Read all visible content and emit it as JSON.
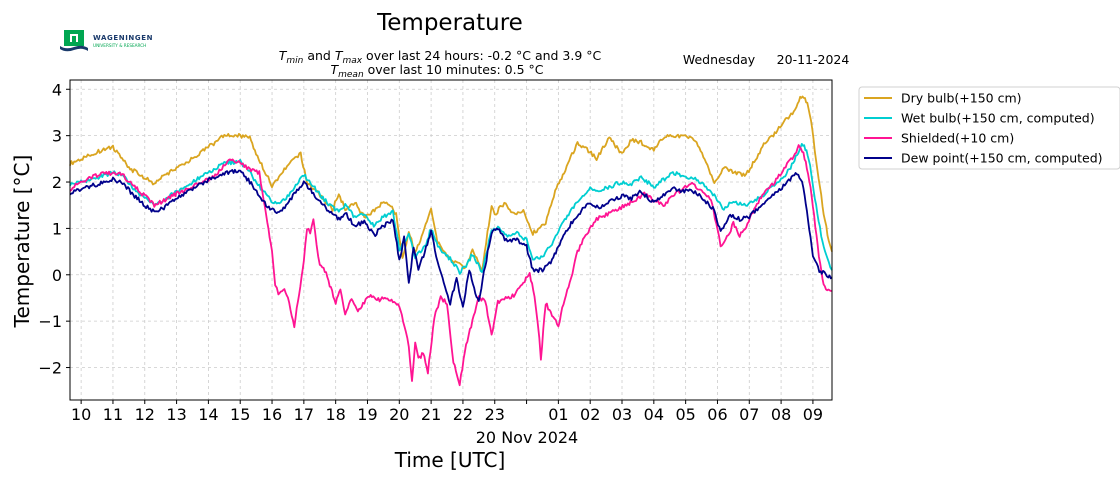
{
  "logo": {
    "line1": "WAGENINGEN",
    "line2": "UNIVERSITY & RESEARCH"
  },
  "header": {
    "title": "Temperature",
    "stats_line1": {
      "t": "T",
      "min_sub": "min",
      "and": " and ",
      "max_sub": "max",
      "rest": " over last 24 hours: -0.2 °C and 3.9 °C"
    },
    "stats_line2": {
      "t": "T",
      "mean_sub": "mean",
      "rest": " over last 10 minutes: 0.5 °C"
    },
    "weekday": "Wednesday",
    "date": "20-11-2024"
  },
  "chart_data": {
    "type": "line",
    "title": "Temperature",
    "xlabel": "Time [UTC]",
    "ylabel": "Temperature [°C]",
    "x_date_label": "20 Nov 2024",
    "x_range_hours": [
      9.65,
      33.6
    ],
    "ylim": [
      -2.7,
      4.2
    ],
    "x_ticks": [
      {
        "h": 10,
        "label": "10"
      },
      {
        "h": 11,
        "label": "11"
      },
      {
        "h": 12,
        "label": "12"
      },
      {
        "h": 13,
        "label": "13"
      },
      {
        "h": 14,
        "label": "14"
      },
      {
        "h": 15,
        "label": "15"
      },
      {
        "h": 16,
        "label": "16"
      },
      {
        "h": 17,
        "label": "17"
      },
      {
        "h": 18,
        "label": "18"
      },
      {
        "h": 19,
        "label": "19"
      },
      {
        "h": 20,
        "label": "20"
      },
      {
        "h": 21,
        "label": "21"
      },
      {
        "h": 22,
        "label": "22"
      },
      {
        "h": 23,
        "label": "23"
      },
      {
        "h": 24,
        "label": ""
      },
      {
        "h": 25,
        "label": "01"
      },
      {
        "h": 26,
        "label": "02"
      },
      {
        "h": 27,
        "label": "03"
      },
      {
        "h": 28,
        "label": "04"
      },
      {
        "h": 29,
        "label": "05"
      },
      {
        "h": 30,
        "label": "06"
      },
      {
        "h": 31,
        "label": "07"
      },
      {
        "h": 32,
        "label": "08"
      },
      {
        "h": 33,
        "label": "09"
      }
    ],
    "y_ticks": [
      {
        "v": 4,
        "label": "4"
      },
      {
        "v": 3,
        "label": "3"
      },
      {
        "v": 2,
        "label": "2"
      },
      {
        "v": 1,
        "label": "1"
      },
      {
        "v": 0,
        "label": "0"
      },
      {
        "v": -1,
        "label": "−1"
      },
      {
        "v": -2,
        "label": "−2"
      }
    ],
    "grid": true,
    "legend_position": "outside-right-top",
    "x_unit_note": "x values are hours of day, 09:40 on 19 Nov 2024 to 09:36 on 20 Nov 2024; values above 24 are hours after midnight of 20 Nov",
    "series": [
      {
        "name": "Dry bulb(+150 cm)",
        "color": "#DAA520",
        "x": [
          9.65,
          10,
          10.5,
          11,
          11.2,
          11.5,
          12,
          12.3,
          12.5,
          13,
          13.5,
          14,
          14.5,
          15,
          15.3,
          15.5,
          15.8,
          16,
          16.3,
          16.6,
          16.9,
          17.1,
          17.3,
          17.6,
          17.9,
          18.1,
          18.3,
          18.6,
          18.9,
          19.1,
          19.3,
          19.6,
          19.9,
          20.1,
          20.3,
          20.5,
          20.7,
          21,
          21.2,
          21.5,
          21.8,
          22.1,
          22.3,
          22.6,
          22.9,
          23,
          23.3,
          23.6,
          23.9,
          24.2,
          24.6,
          24.9,
          25.3,
          25.6,
          25.9,
          26.2,
          26.6,
          27,
          27.3,
          27.6,
          28,
          28.3,
          28.6,
          29,
          29.3,
          29.6,
          29.9,
          30.2,
          30.6,
          30.9,
          31.2,
          31.5,
          31.8,
          32.1,
          32.4,
          32.6,
          32.75,
          32.9,
          33.1,
          33.3,
          33.5,
          33.6
        ],
        "y": [
          2.4,
          2.5,
          2.65,
          2.75,
          2.6,
          2.3,
          2.1,
          1.95,
          2.1,
          2.3,
          2.5,
          2.75,
          3.0,
          3.0,
          2.95,
          2.6,
          2.2,
          1.9,
          2.2,
          2.45,
          2.6,
          2.0,
          1.85,
          1.65,
          1.4,
          1.75,
          1.4,
          1.55,
          1.25,
          1.3,
          1.45,
          1.6,
          1.3,
          0.4,
          0.9,
          0.5,
          0.8,
          1.45,
          0.7,
          0.4,
          0.25,
          0.15,
          0.55,
          0.1,
          1.5,
          1.3,
          1.55,
          1.3,
          1.4,
          0.9,
          1.1,
          1.8,
          2.4,
          2.85,
          2.7,
          2.5,
          2.95,
          2.6,
          2.9,
          2.85,
          2.7,
          2.95,
          3.0,
          3.0,
          2.9,
          2.5,
          2.0,
          2.3,
          2.2,
          2.15,
          2.5,
          2.85,
          3.05,
          3.3,
          3.5,
          3.8,
          3.85,
          3.5,
          2.5,
          1.5,
          0.7,
          0.5
        ]
      },
      {
        "name": "Wet bulb(+150 cm, computed)",
        "color": "#00CED1",
        "x": [
          9.65,
          10,
          10.5,
          11,
          11.3,
          11.6,
          12,
          12.3,
          12.6,
          13,
          13.5,
          14,
          14.5,
          15,
          15.3,
          15.6,
          15.9,
          16.1,
          16.4,
          16.7,
          17,
          17.3,
          17.6,
          17.9,
          18.1,
          18.3,
          18.6,
          18.9,
          19.2,
          19.5,
          19.8,
          20,
          20.3,
          20.5,
          20.8,
          21,
          21.3,
          21.6,
          21.9,
          22.1,
          22.3,
          22.6,
          22.9,
          23.1,
          23.4,
          23.7,
          24,
          24.2,
          24.5,
          24.8,
          25.2,
          25.6,
          26,
          26.3,
          26.6,
          27,
          27.3,
          27.6,
          28,
          28.3,
          28.6,
          29,
          29.3,
          29.6,
          29.9,
          30.2,
          30.5,
          30.8,
          31.1,
          31.4,
          31.7,
          32,
          32.3,
          32.5,
          32.65,
          32.8,
          32.95,
          33.1,
          33.3,
          33.5,
          33.6
        ],
        "y": [
          1.95,
          2.0,
          2.1,
          2.2,
          2.15,
          1.9,
          1.65,
          1.5,
          1.6,
          1.8,
          2.0,
          2.2,
          2.4,
          2.45,
          2.2,
          1.9,
          1.65,
          1.55,
          1.6,
          1.9,
          2.15,
          1.9,
          1.65,
          1.45,
          1.35,
          1.5,
          1.25,
          1.3,
          1.05,
          1.25,
          1.35,
          0.55,
          0.85,
          0.4,
          0.6,
          1.0,
          0.5,
          0.35,
          0.05,
          0.2,
          0.45,
          0.05,
          0.95,
          1.0,
          0.8,
          0.9,
          0.75,
          0.35,
          0.4,
          0.65,
          1.2,
          1.55,
          1.85,
          1.8,
          1.9,
          2.0,
          1.95,
          2.1,
          1.9,
          2.05,
          2.2,
          2.1,
          2.1,
          1.9,
          1.7,
          1.4,
          1.6,
          1.5,
          1.55,
          1.7,
          1.9,
          2.05,
          2.3,
          2.6,
          2.8,
          2.7,
          2.2,
          1.5,
          0.7,
          0.25,
          0.1
        ]
      },
      {
        "name": "Shielded(+10 cm)",
        "color": "#FF1493",
        "x": [
          9.65,
          10,
          10.5,
          11,
          11.3,
          11.6,
          12,
          12.3,
          12.6,
          13,
          13.5,
          14,
          14.3,
          14.6,
          15,
          15.3,
          15.6,
          15.7,
          15.85,
          16,
          16.1,
          16.2,
          16.35,
          16.5,
          16.7,
          16.85,
          17,
          17.1,
          17.2,
          17.3,
          17.4,
          17.5,
          17.7,
          17.85,
          18,
          18.15,
          18.3,
          18.5,
          18.7,
          18.9,
          19.1,
          19.3,
          19.5,
          19.8,
          20,
          20.2,
          20.3,
          20.4,
          20.5,
          20.6,
          20.75,
          20.9,
          21.1,
          21.3,
          21.5,
          21.7,
          21.9,
          22.1,
          22.3,
          22.5,
          22.7,
          22.9,
          23.1,
          23.3,
          23.6,
          23.9,
          24.1,
          24.25,
          24.35,
          24.45,
          24.6,
          24.8,
          25,
          25.2,
          25.4,
          25.6,
          25.9,
          26.2,
          26.5,
          26.8,
          27.1,
          27.4,
          27.7,
          28,
          28.3,
          28.6,
          28.9,
          29.2,
          29.5,
          29.8,
          30,
          30.1,
          30.3,
          30.5,
          30.7,
          30.9,
          31.2,
          31.5,
          31.8,
          32.1,
          32.4,
          32.55,
          32.7,
          32.85,
          33,
          33.15,
          33.3,
          33.45,
          33.6
        ],
        "y": [
          1.85,
          2.0,
          2.15,
          2.2,
          2.15,
          1.95,
          1.7,
          1.5,
          1.6,
          1.75,
          1.9,
          2.05,
          2.2,
          2.45,
          2.45,
          2.25,
          2.2,
          1.8,
          1.1,
          0.5,
          -0.2,
          -0.4,
          -0.3,
          -0.5,
          -1.1,
          -0.4,
          0.3,
          1.0,
          0.9,
          1.2,
          0.6,
          0.2,
          0.05,
          -0.3,
          -0.6,
          -0.3,
          -0.9,
          -0.5,
          -0.8,
          -0.6,
          -0.45,
          -0.55,
          -0.5,
          -0.55,
          -0.7,
          -1.2,
          -1.6,
          -2.3,
          -1.5,
          -1.8,
          -1.7,
          -2.1,
          -0.9,
          -0.5,
          -0.6,
          -1.9,
          -2.35,
          -1.5,
          -1.0,
          -0.5,
          -0.55,
          -1.3,
          -0.6,
          -0.5,
          -0.45,
          -0.2,
          0.05,
          -0.5,
          -1.0,
          -1.8,
          -0.6,
          -0.9,
          -1.1,
          -0.5,
          -0.1,
          0.5,
          0.9,
          1.2,
          1.3,
          1.4,
          1.5,
          1.6,
          1.75,
          1.6,
          1.5,
          1.7,
          1.85,
          1.95,
          1.8,
          1.6,
          1.0,
          0.6,
          0.8,
          1.1,
          0.85,
          1.0,
          1.5,
          1.8,
          2.0,
          2.3,
          2.55,
          2.8,
          2.6,
          2.2,
          1.5,
          0.6,
          -0.1,
          -0.35,
          -0.35
        ]
      },
      {
        "name": "Dew point(+150 cm, computed)",
        "color": "#00008B",
        "x": [
          9.65,
          10,
          10.5,
          11,
          11.3,
          11.6,
          12,
          12.3,
          12.6,
          13,
          13.5,
          14,
          14.5,
          15,
          15.3,
          15.6,
          15.9,
          16.1,
          16.4,
          16.7,
          17,
          17.3,
          17.6,
          17.9,
          18.1,
          18.3,
          18.6,
          18.9,
          19.2,
          19.5,
          19.8,
          20,
          20.15,
          20.3,
          20.45,
          20.6,
          20.8,
          21,
          21.2,
          21.4,
          21.6,
          21.8,
          22,
          22.2,
          22.35,
          22.5,
          22.7,
          22.9,
          23.1,
          23.4,
          23.7,
          24,
          24.2,
          24.5,
          24.8,
          25.2,
          25.6,
          26,
          26.3,
          26.6,
          27,
          27.3,
          27.6,
          28,
          28.3,
          28.6,
          29,
          29.3,
          29.6,
          29.9,
          30.1,
          30.4,
          30.7,
          31,
          31.3,
          31.6,
          31.9,
          32.2,
          32.5,
          32.7,
          32.85,
          33,
          33.2,
          33.4,
          33.6
        ],
        "y": [
          1.75,
          1.85,
          1.95,
          2.05,
          2.0,
          1.75,
          1.5,
          1.35,
          1.45,
          1.65,
          1.85,
          2.05,
          2.2,
          2.25,
          2.0,
          1.7,
          1.45,
          1.35,
          1.45,
          1.75,
          2.0,
          1.75,
          1.5,
          1.3,
          1.2,
          1.35,
          1.05,
          1.15,
          0.85,
          1.05,
          1.2,
          0.3,
          0.8,
          -0.2,
          0.6,
          0.1,
          0.5,
          0.95,
          0.3,
          -0.2,
          -0.6,
          -0.1,
          -0.7,
          0.1,
          -0.3,
          -0.6,
          0.2,
          0.9,
          1.0,
          0.7,
          0.75,
          0.6,
          0.1,
          0.1,
          0.3,
          0.9,
          1.3,
          1.55,
          1.45,
          1.6,
          1.7,
          1.65,
          1.8,
          1.55,
          1.7,
          1.85,
          1.8,
          1.8,
          1.6,
          1.4,
          0.9,
          1.3,
          1.2,
          1.25,
          1.45,
          1.65,
          1.8,
          2.0,
          2.2,
          1.9,
          1.2,
          0.4,
          0.1,
          0.0,
          -0.05
        ]
      }
    ]
  }
}
